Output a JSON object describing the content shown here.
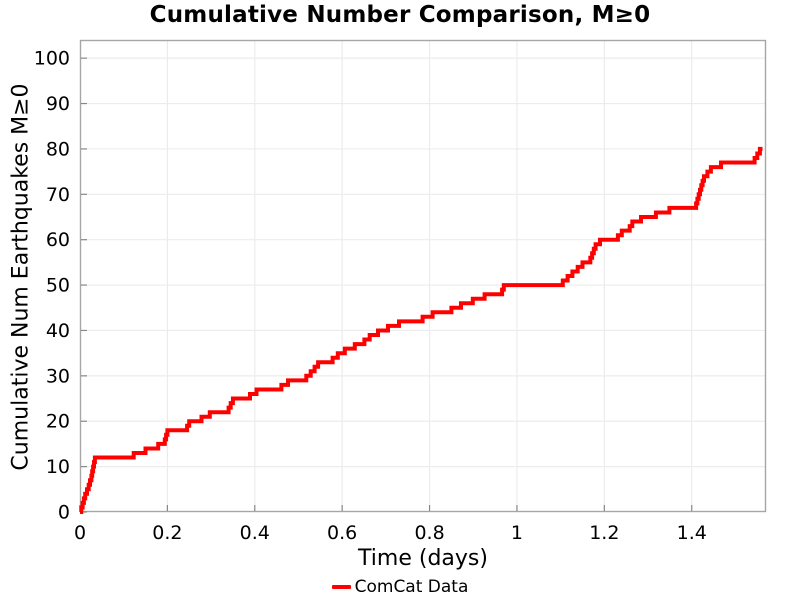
{
  "chart_data": {
    "type": "line",
    "line_style": "step-post",
    "title": "Cumulative Number Comparison, M≥0",
    "xlabel": "Time (days)",
    "ylabel": "Cumulative Num Earthquakes M≥0",
    "xlim": [
      0,
      1.57
    ],
    "ylim": [
      0,
      104
    ],
    "xtick_values": [
      0,
      0.2,
      0.4,
      0.6,
      0.8,
      1,
      1.2,
      1.4
    ],
    "xtick_labels": [
      "0",
      "0.2",
      "0.4",
      "0.6",
      "0.8",
      "1",
      "1.2",
      "1.4"
    ],
    "ytick_values": [
      0,
      10,
      20,
      30,
      40,
      50,
      60,
      70,
      80,
      90,
      100
    ],
    "ytick_labels": [
      "0",
      "10",
      "20",
      "30",
      "40",
      "50",
      "60",
      "70",
      "80",
      "90",
      "100"
    ],
    "grid": true,
    "legend": {
      "position": "bottom-center",
      "entries": [
        {
          "label": "ComCat Data",
          "color": "#ff0000"
        }
      ]
    },
    "series": [
      {
        "name": "ComCat Data",
        "color": "#ff0000",
        "line_width": 4,
        "start": [
          0,
          0
        ],
        "end_time": 1.562,
        "events": [
          [
            0.003,
            1
          ],
          [
            0.006,
            2
          ],
          [
            0.009,
            3
          ],
          [
            0.012,
            4
          ],
          [
            0.016,
            5
          ],
          [
            0.02,
            6
          ],
          [
            0.023,
            7
          ],
          [
            0.026,
            8
          ],
          [
            0.028,
            9
          ],
          [
            0.03,
            10
          ],
          [
            0.032,
            11
          ],
          [
            0.034,
            12
          ],
          [
            0.123,
            13
          ],
          [
            0.15,
            14
          ],
          [
            0.179,
            15
          ],
          [
            0.194,
            16
          ],
          [
            0.197,
            17
          ],
          [
            0.2,
            18
          ],
          [
            0.245,
            19
          ],
          [
            0.25,
            20
          ],
          [
            0.278,
            21
          ],
          [
            0.297,
            22
          ],
          [
            0.34,
            23
          ],
          [
            0.345,
            24
          ],
          [
            0.35,
            25
          ],
          [
            0.389,
            26
          ],
          [
            0.404,
            27
          ],
          [
            0.461,
            28
          ],
          [
            0.476,
            29
          ],
          [
            0.518,
            30
          ],
          [
            0.528,
            31
          ],
          [
            0.537,
            32
          ],
          [
            0.545,
            33
          ],
          [
            0.578,
            34
          ],
          [
            0.59,
            35
          ],
          [
            0.606,
            36
          ],
          [
            0.629,
            37
          ],
          [
            0.651,
            38
          ],
          [
            0.663,
            39
          ],
          [
            0.682,
            40
          ],
          [
            0.705,
            41
          ],
          [
            0.73,
            42
          ],
          [
            0.784,
            43
          ],
          [
            0.807,
            44
          ],
          [
            0.85,
            45
          ],
          [
            0.872,
            46
          ],
          [
            0.899,
            47
          ],
          [
            0.926,
            48
          ],
          [
            0.966,
            49
          ],
          [
            0.97,
            50
          ],
          [
            1.105,
            51
          ],
          [
            1.116,
            52
          ],
          [
            1.127,
            53
          ],
          [
            1.139,
            54
          ],
          [
            1.15,
            55
          ],
          [
            1.168,
            56
          ],
          [
            1.172,
            57
          ],
          [
            1.176,
            58
          ],
          [
            1.18,
            59
          ],
          [
            1.19,
            60
          ],
          [
            1.231,
            61
          ],
          [
            1.24,
            62
          ],
          [
            1.258,
            63
          ],
          [
            1.264,
            64
          ],
          [
            1.284,
            65
          ],
          [
            1.318,
            66
          ],
          [
            1.349,
            67
          ],
          [
            1.41,
            68
          ],
          [
            1.413,
            69
          ],
          [
            1.416,
            70
          ],
          [
            1.419,
            71
          ],
          [
            1.422,
            72
          ],
          [
            1.425,
            73
          ],
          [
            1.428,
            74
          ],
          [
            1.436,
            75
          ],
          [
            1.444,
            76
          ],
          [
            1.467,
            77
          ],
          [
            1.544,
            78
          ],
          [
            1.55,
            79
          ],
          [
            1.556,
            80
          ]
        ]
      }
    ]
  },
  "style": {
    "background": "#ffffff",
    "grid_color": "#ececec",
    "spine_color": "#a6a6a6",
    "tick_color": "#888888",
    "text_color": "#000000"
  }
}
